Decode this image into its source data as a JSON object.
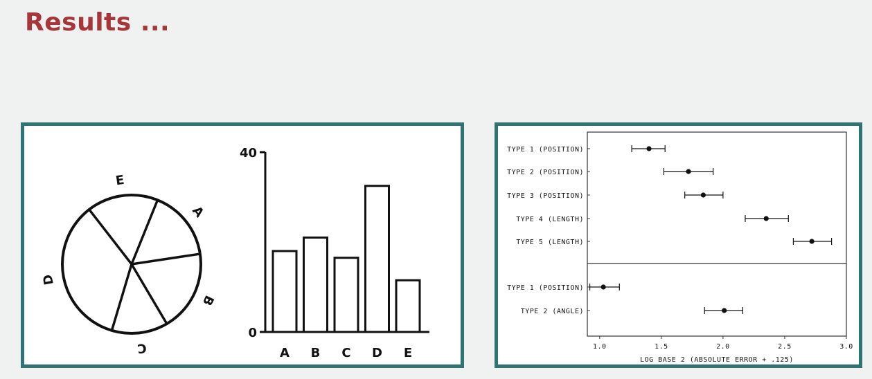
{
  "slide": {
    "title": "Results ..."
  },
  "chart_data": [
    {
      "type": "pie",
      "categories": [
        "A",
        "B",
        "C",
        "D",
        "E"
      ],
      "values": [
        16.5,
        18.9,
        13.1,
        34.9,
        16.6
      ],
      "labels": [
        "A",
        "B",
        "C",
        "D",
        "E"
      ]
    },
    {
      "type": "bar",
      "categories": [
        "A",
        "B",
        "C",
        "D",
        "E"
      ],
      "values": [
        18,
        21,
        16.5,
        32.5,
        11.5
      ],
      "ylim": [
        0,
        40
      ],
      "yticks": [
        "0",
        "40"
      ]
    },
    {
      "type": "scatter",
      "xlabel": "LOG BASE 2 (ABSOLUTE ERROR + .125)",
      "xlim": [
        0.9,
        3.0
      ],
      "xticks": [
        "1.0",
        "1.5",
        "2.0",
        "2.5",
        "3.0"
      ],
      "groups": [
        {
          "rows": [
            {
              "label": "TYPE 1 (POSITION)",
              "value": 1.4,
              "ci": [
                1.26,
                1.53
              ]
            },
            {
              "label": "TYPE 2 (POSITION)",
              "value": 1.72,
              "ci": [
                1.52,
                1.92
              ]
            },
            {
              "label": "TYPE 3 (POSITION)",
              "value": 1.84,
              "ci": [
                1.69,
                2.0
              ]
            },
            {
              "label": "TYPE 4 (LENGTH)",
              "value": 2.35,
              "ci": [
                2.18,
                2.53
              ]
            },
            {
              "label": "TYPE 5 (LENGTH)",
              "value": 2.72,
              "ci": [
                2.57,
                2.88
              ]
            }
          ]
        },
        {
          "rows": [
            {
              "label": "TYPE 1 (POSITION)",
              "value": 1.03,
              "ci": [
                0.92,
                1.16
              ]
            },
            {
              "label": "TYPE 2 (ANGLE)",
              "value": 2.01,
              "ci": [
                1.85,
                2.16
              ]
            }
          ]
        }
      ]
    }
  ]
}
